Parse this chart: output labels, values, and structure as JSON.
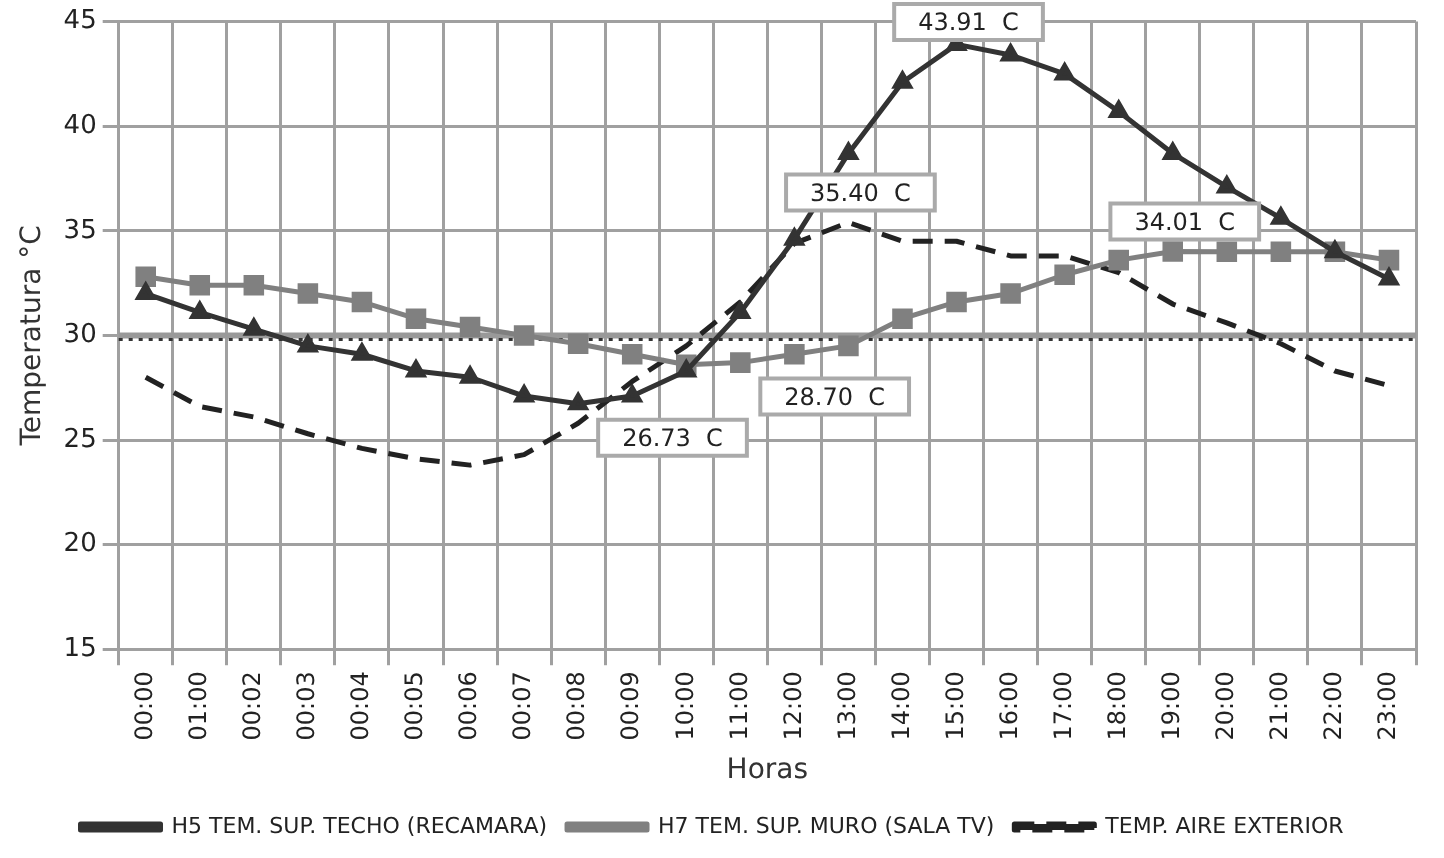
{
  "chart_data": {
    "type": "line",
    "xlabel": "Horas",
    "ylabel": "Temperatura °C",
    "categories": [
      "00:00",
      "01:00",
      "00:02",
      "00:03",
      "00:04",
      "00:05",
      "00:06",
      "00:07",
      "00:08",
      "00:09",
      "10:00",
      "11:00",
      "12:00",
      "13:00",
      "14:00",
      "15:00",
      "16:00",
      "17:00",
      "18:00",
      "19:00",
      "20:00",
      "21:00",
      "22:00",
      "23:00"
    ],
    "series": [
      {
        "name": "H5 TEM. SUP. TECHO (RECAMARA)",
        "color": "#333333",
        "marker": "triangle",
        "line_style": "solid",
        "values": [
          32.0,
          31.1,
          30.3,
          29.5,
          29.1,
          28.3,
          28.0,
          27.1,
          26.73,
          27.1,
          28.3,
          31.1,
          34.6,
          38.7,
          42.1,
          43.91,
          43.4,
          42.5,
          40.7,
          38.7,
          37.1,
          35.6,
          34.0,
          32.7
        ]
      },
      {
        "name": "H7 TEM. SUP. MURO (SALA TV)",
        "color": "#808080",
        "marker": "square",
        "line_style": "solid",
        "values": [
          32.8,
          32.4,
          32.4,
          32.0,
          31.6,
          30.8,
          30.4,
          30.0,
          29.6,
          29.1,
          28.6,
          28.7,
          29.1,
          29.5,
          30.8,
          31.6,
          32.0,
          32.9,
          33.6,
          34.01,
          34.0,
          34.0,
          34.0,
          33.6
        ]
      },
      {
        "name": "TEMP. AIRE EXTERIOR",
        "color": "#222222",
        "marker": "none",
        "line_style": "dashed",
        "values": [
          28.0,
          26.6,
          26.1,
          25.3,
          24.6,
          24.1,
          23.8,
          24.3,
          25.8,
          27.8,
          29.5,
          31.6,
          34.4,
          35.4,
          34.5,
          34.5,
          33.8,
          33.8,
          33.0,
          31.5,
          30.6,
          29.6,
          28.3,
          27.6
        ]
      }
    ],
    "ylim": [
      15,
      45
    ],
    "yticks": [
      15,
      20,
      25,
      30,
      35,
      40,
      45
    ],
    "grid": true,
    "legend": "bottom",
    "ref_lines": [
      {
        "axis": "y",
        "value": 30.0,
        "color": "#999999",
        "line_style": "solid"
      },
      {
        "axis": "y",
        "value": 29.8,
        "color": "#333333",
        "line_style": "dotted"
      }
    ],
    "annotations": [
      {
        "text": "43.91  C",
        "x": "15:00",
        "y": 43.91
      },
      {
        "text": "35.40  C",
        "x": "13:00",
        "y": 35.4
      },
      {
        "text": "34.01  C",
        "x": "19:00",
        "y": 34.01
      },
      {
        "text": "26.73  C",
        "x": "00:08",
        "y": 26.73
      },
      {
        "text": "28.70  C",
        "x": "11:00",
        "y": 28.7
      }
    ]
  }
}
